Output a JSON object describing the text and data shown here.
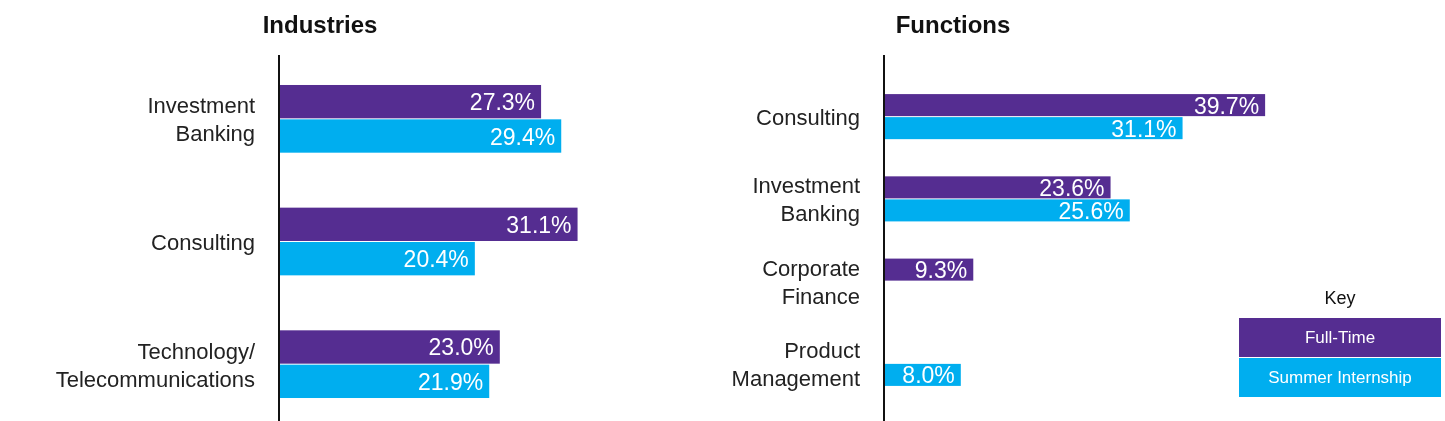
{
  "chart_data": [
    {
      "type": "bar",
      "orientation": "horizontal",
      "title": "Industries",
      "categories": [
        "Investment Banking",
        "Consulting",
        "Technology/Telecommunications"
      ],
      "series": [
        {
          "color": "#552d91",
          "values": [
            27.3,
            31.1,
            23.0
          ],
          "value_labels": [
            "27.3%",
            "31.1%",
            "23.0%"
          ]
        },
        {
          "color": "#00aeef",
          "values": [
            29.4,
            20.4,
            21.9
          ],
          "value_labels": [
            "29.4%",
            "20.4%",
            "21.9%"
          ]
        }
      ],
      "legend": false
    },
    {
      "type": "bar",
      "orientation": "horizontal",
      "title": "Functions",
      "categories": [
        "Consulting",
        "Investment Banking",
        "Corporate Finance",
        "Product Management"
      ],
      "series": [
        {
          "name": "Full-Time",
          "color": "#552d91",
          "values": [
            39.7,
            23.6,
            9.3,
            null
          ],
          "value_labels": [
            "39.7%",
            "23.6%",
            "9.3%",
            null
          ]
        },
        {
          "name": "Summer Internship",
          "color": "#00aeef",
          "values": [
            31.1,
            25.6,
            null,
            8.0
          ],
          "value_labels": [
            "31.1%",
            "25.6%",
            null,
            "8.0%"
          ]
        }
      ],
      "legend": "bottom right",
      "legend_title": "Key"
    }
  ]
}
